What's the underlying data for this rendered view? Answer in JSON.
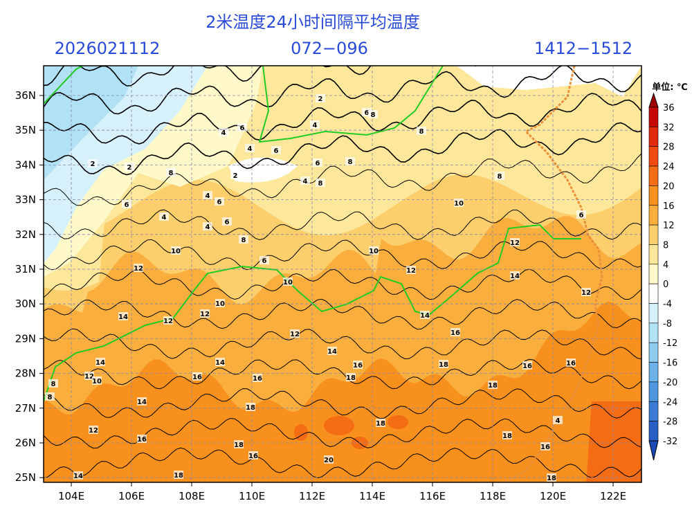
{
  "header": {
    "title": "2米温度24小时间隔平均温度",
    "init_time": "2026021112",
    "forecast_hours": "072−096",
    "valid_range": "1412−1512"
  },
  "map": {
    "lat_labels": [
      "36N",
      "35N",
      "34N",
      "33N",
      "32N",
      "31N",
      "30N",
      "29N",
      "28N",
      "27N",
      "26N",
      "25N"
    ],
    "lon_labels": [
      "104E",
      "106E",
      "108E",
      "110E",
      "112E",
      "114E",
      "116E",
      "118E",
      "120E",
      "122E"
    ],
    "contour_labels": [
      2,
      6,
      8,
      4,
      4,
      6,
      4,
      6,
      2,
      2,
      8,
      6,
      8,
      8,
      2,
      4,
      8,
      4,
      6,
      6,
      4,
      6,
      4,
      8,
      6,
      10,
      12,
      10,
      10,
      12,
      12,
      14,
      10,
      10,
      8,
      6,
      12,
      12,
      14,
      12,
      14,
      16,
      12,
      14,
      14,
      12,
      10,
      14,
      16,
      18,
      16,
      16,
      16,
      16,
      18,
      18,
      14,
      18,
      18,
      12,
      16,
      18,
      16,
      18,
      16,
      20,
      14,
      18,
      18,
      4,
      8,
      8
    ]
  },
  "colorbar": {
    "unit_label": "单位: ℃",
    "levels": [
      36,
      32,
      28,
      24,
      20,
      16,
      12,
      8,
      4,
      0,
      -4,
      -8,
      -12,
      -16,
      -20,
      -24,
      -28,
      -32
    ],
    "colors": [
      "#a00000",
      "#c40808",
      "#e02a0c",
      "#f04a10",
      "#f46c14",
      "#f7901c",
      "#f9ae3e",
      "#fcce6c",
      "#fde79a",
      "#fff8c8",
      "#ffffff",
      "#d6f1fa",
      "#b0e1f5",
      "#8ecdef",
      "#6cb3e9",
      "#4e97df",
      "#3a7bd5",
      "#2a5fc6",
      "#1c48b6"
    ]
  }
}
